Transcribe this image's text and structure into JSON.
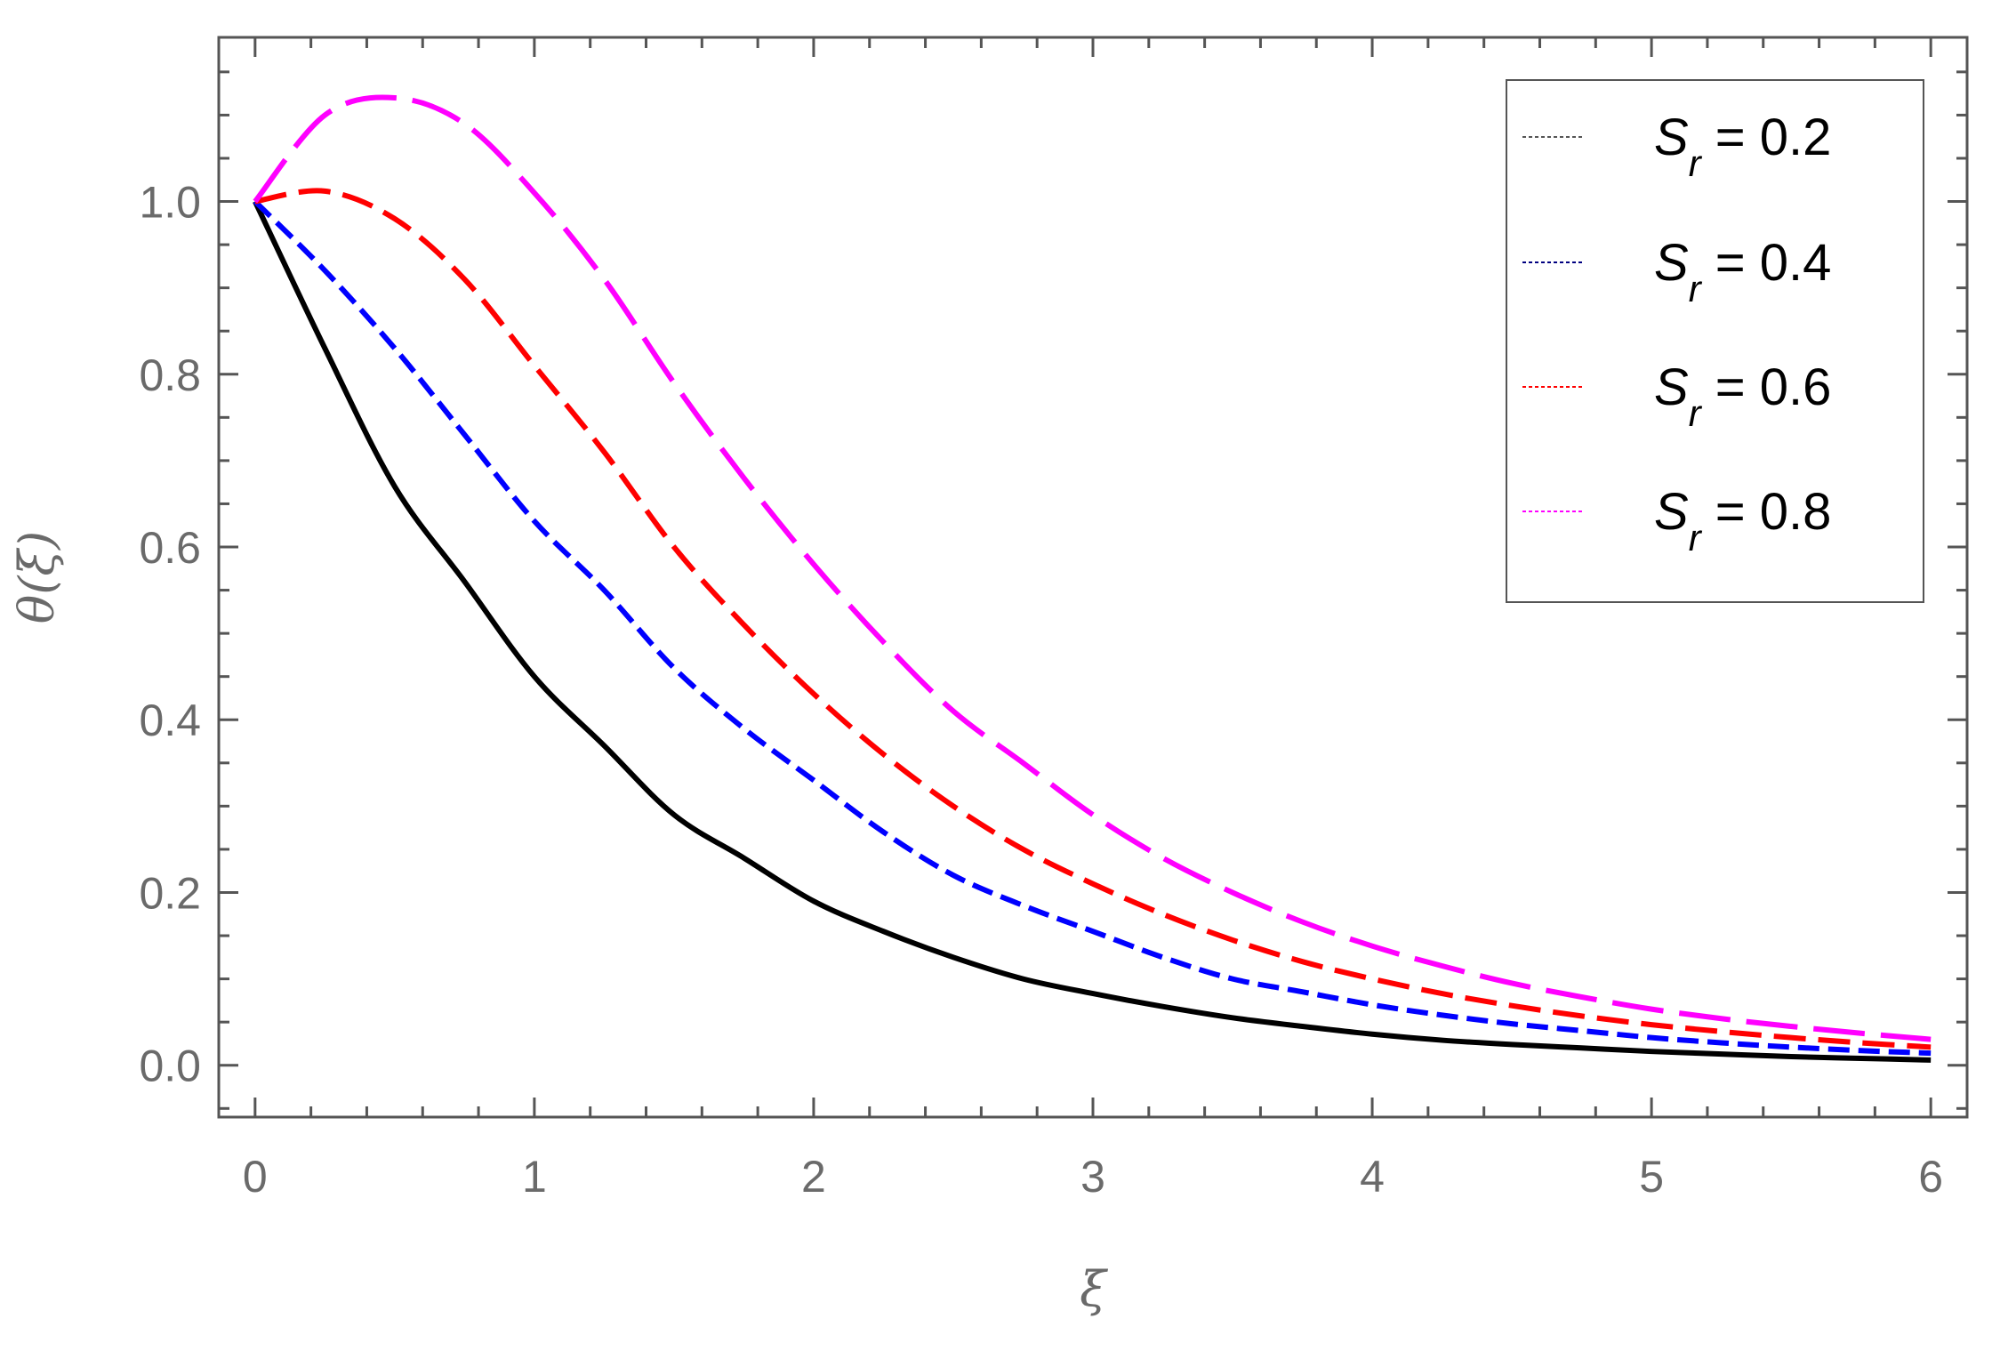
{
  "chart_data": {
    "type": "line",
    "xlabel": "ξ",
    "ylabel": "θ(ξ)",
    "xlim": [
      -0.13,
      6.13
    ],
    "ylim": [
      -0.06,
      1.19
    ],
    "x_ticks": [
      "0",
      "1",
      "2",
      "3",
      "4",
      "5",
      "6"
    ],
    "y_ticks": [
      "0.0",
      "0.2",
      "0.4",
      "0.6",
      "0.8",
      "1.0"
    ],
    "grid": false,
    "legend_position": "top-right",
    "colors": {
      "frame": "#555555",
      "tick_text": "#6a6a6a",
      "series_black": "#000000",
      "series_blue": "#0000ff",
      "series_red": "#ff0000",
      "series_magenta": "#ff00ff"
    },
    "x": [
      0,
      0.25,
      0.5,
      0.75,
      1,
      1.25,
      1.5,
      1.75,
      2,
      2.25,
      2.5,
      2.75,
      3,
      3.25,
      3.5,
      3.75,
      4,
      4.25,
      4.5,
      4.75,
      5,
      5.25,
      5.5,
      5.75,
      6
    ],
    "series": [
      {
        "name": "S_r = 0.2",
        "color": "#000000",
        "dash": "solid",
        "values": [
          1.0,
          0.83,
          0.67,
          0.56,
          0.45,
          0.37,
          0.29,
          0.24,
          0.19,
          0.155,
          0.125,
          0.1,
          0.083,
          0.068,
          0.055,
          0.045,
          0.036,
          0.029,
          0.024,
          0.02,
          0.016,
          0.013,
          0.01,
          0.008,
          0.006
        ]
      },
      {
        "name": "S_r = 0.4",
        "color": "#0000ff",
        "dash": "short",
        "values": [
          1.0,
          0.92,
          0.83,
          0.73,
          0.63,
          0.55,
          0.46,
          0.39,
          0.33,
          0.27,
          0.22,
          0.185,
          0.155,
          0.125,
          0.1,
          0.085,
          0.07,
          0.058,
          0.048,
          0.04,
          0.032,
          0.026,
          0.021,
          0.017,
          0.014
        ]
      },
      {
        "name": "S_r = 0.6",
        "color": "#ff0000",
        "dash": "medium",
        "values": [
          1.0,
          1.012,
          0.98,
          0.91,
          0.81,
          0.71,
          0.6,
          0.51,
          0.43,
          0.36,
          0.3,
          0.25,
          0.21,
          0.175,
          0.145,
          0.12,
          0.1,
          0.083,
          0.069,
          0.057,
          0.047,
          0.039,
          0.032,
          0.026,
          0.021
        ]
      },
      {
        "name": "S_r = 0.8",
        "color": "#ff00ff",
        "dash": "long",
        "values": [
          1.0,
          1.1,
          1.12,
          1.09,
          1.01,
          0.91,
          0.79,
          0.68,
          0.58,
          0.49,
          0.41,
          0.35,
          0.29,
          0.24,
          0.2,
          0.166,
          0.138,
          0.115,
          0.095,
          0.079,
          0.065,
          0.054,
          0.045,
          0.037,
          0.03
        ]
      }
    ],
    "legend": [
      {
        "symbol": "S",
        "subscript": "r",
        "text": " = 0.2"
      },
      {
        "symbol": "S",
        "subscript": "r",
        "text": " = 0.4"
      },
      {
        "symbol": "S",
        "subscript": "r",
        "text": " = 0.6"
      },
      {
        "symbol": "S",
        "subscript": "r",
        "text": " = 0.8"
      }
    ]
  }
}
